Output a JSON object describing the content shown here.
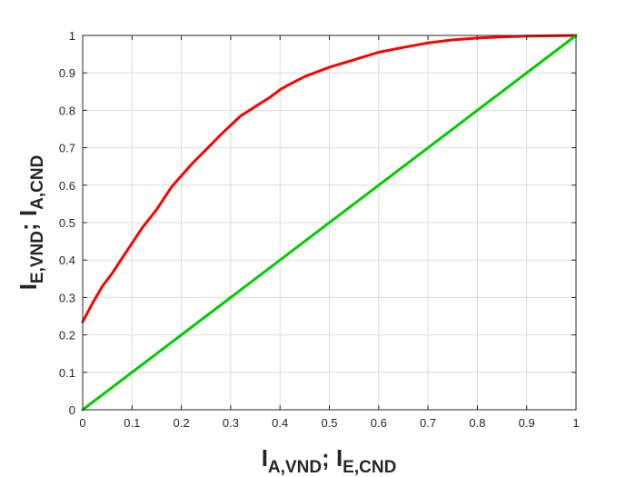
{
  "chart_data": {
    "type": "line",
    "title": "",
    "xlabel": {
      "main": "I",
      "sub": "A,VND",
      "sep": "; ",
      "main2": "I",
      "sub2": "E,CND"
    },
    "ylabel": {
      "main": "I",
      "sub": "E,VND",
      "sep": "; ",
      "main2": "I",
      "sub2": "A,CND"
    },
    "xlim": [
      0,
      1
    ],
    "ylim": [
      0,
      1
    ],
    "grid": true,
    "legend": "none",
    "xticks": [
      "0",
      "0.1",
      "0.2",
      "0.3",
      "0.4",
      "0.5",
      "0.6",
      "0.7",
      "0.8",
      "0.9",
      "1"
    ],
    "yticks": [
      "0",
      "0.1",
      "0.2",
      "0.3",
      "0.4",
      "0.5",
      "0.6",
      "0.7",
      "0.8",
      "0.9",
      "1"
    ],
    "series": [
      {
        "color": "#ff0000",
        "x": [
          0,
          0.02,
          0.04,
          0.06,
          0.08,
          0.1,
          0.12,
          0.15,
          0.18,
          0.2,
          0.22,
          0.25,
          0.28,
          0.3,
          0.32,
          0.35,
          0.38,
          0.4,
          0.42,
          0.45,
          0.48,
          0.5,
          0.55,
          0.6,
          0.65,
          0.7,
          0.75,
          0.8,
          0.85,
          0.9,
          0.95,
          1.0
        ],
        "y": [
          0.235,
          0.285,
          0.33,
          0.365,
          0.405,
          0.445,
          0.485,
          0.535,
          0.595,
          0.625,
          0.655,
          0.695,
          0.735,
          0.76,
          0.785,
          0.81,
          0.835,
          0.855,
          0.87,
          0.89,
          0.905,
          0.915,
          0.935,
          0.955,
          0.968,
          0.98,
          0.988,
          0.993,
          0.996,
          0.998,
          0.999,
          1.0
        ]
      },
      {
        "color": "#00cc00",
        "x": [
          0,
          1
        ],
        "y": [
          0,
          1
        ]
      }
    ]
  }
}
